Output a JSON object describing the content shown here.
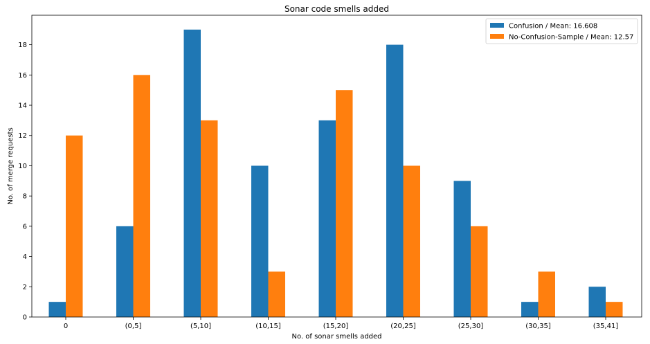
{
  "chart_data": {
    "type": "bar",
    "title": "Sonar code smells added",
    "xlabel": "No. of sonar smells added",
    "ylabel": "No. of merge requests",
    "categories": [
      "0",
      "(0,5]",
      "(5,10]",
      "(10,15]",
      "(15,20]",
      "(20,25]",
      "(25,30]",
      "(30,35]",
      "(35,41]"
    ],
    "series": [
      {
        "name": "Confusion / Mean: 16.608",
        "color": "#1f77b4",
        "values": [
          1,
          6,
          19,
          10,
          13,
          18,
          9,
          1,
          2
        ]
      },
      {
        "name": "No-Confusion-Sample / Mean: 12.57",
        "color": "#ff7f0e",
        "values": [
          12,
          16,
          13,
          3,
          15,
          10,
          6,
          3,
          1
        ]
      }
    ],
    "ylim": [
      0,
      19.95
    ],
    "yticks": [
      0,
      2,
      4,
      6,
      8,
      10,
      12,
      14,
      16,
      18
    ],
    "grid": false,
    "legend_position": "top-right"
  }
}
